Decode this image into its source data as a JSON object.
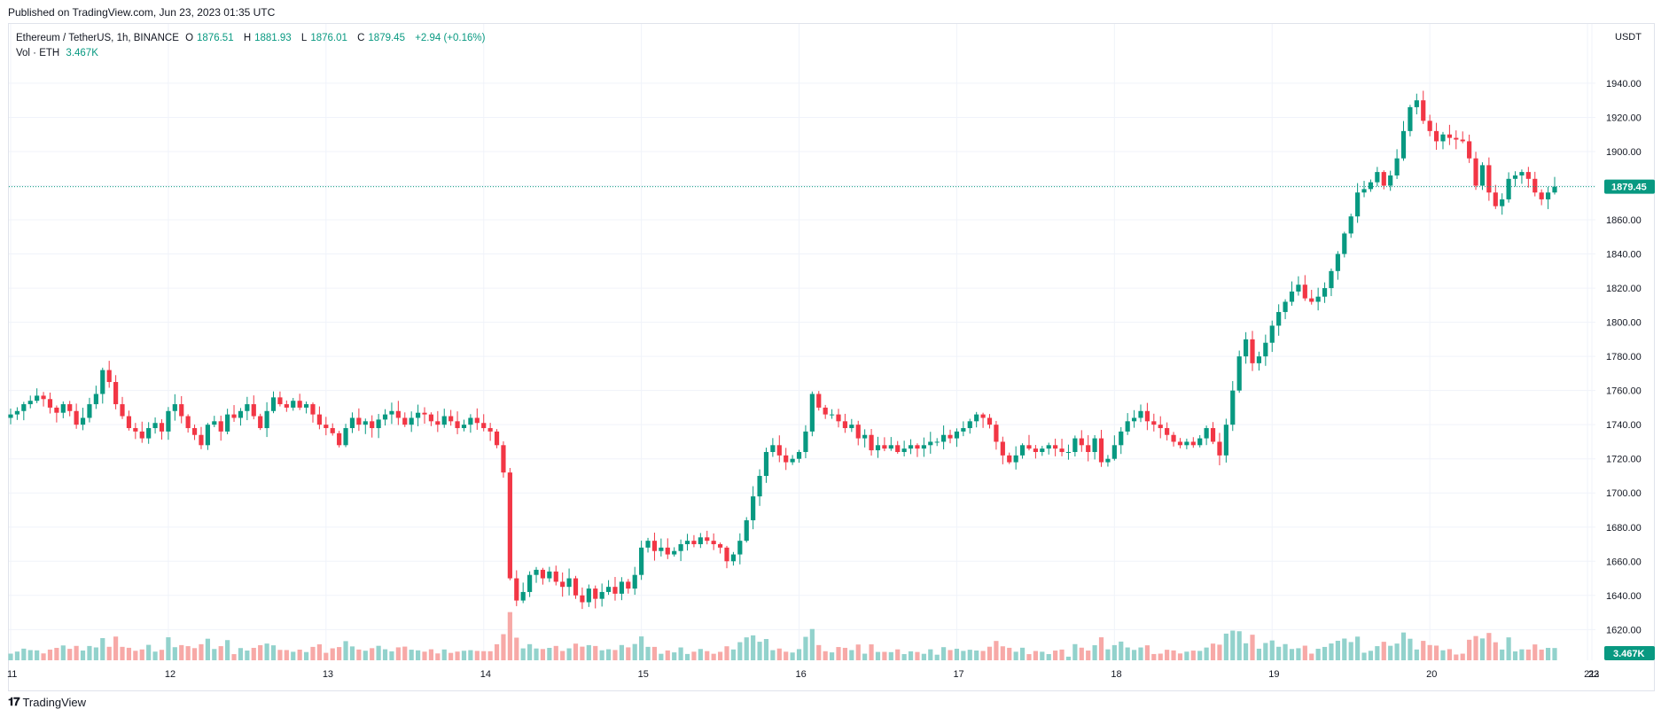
{
  "header": {
    "published": "Published on TradingView.com, Jun 23, 2023 01:35 UTC"
  },
  "legend": {
    "symbol": "Ethereum / TetherUS, 1h, BINANCE",
    "open_label": "O",
    "open": "1876.51",
    "high_label": "H",
    "high": "1881.93",
    "low_label": "L",
    "low": "1876.01",
    "close_label": "C",
    "close": "1879.45",
    "change": "+2.94 (+0.16%)",
    "vol_label": "Vol · ETH",
    "vol_value": "3.467K"
  },
  "footer": {
    "brand": "TradingView",
    "logo_icon": "tradingview-logo-icon"
  },
  "colors": {
    "up": "#089981",
    "down": "#f23645",
    "vol_up": "#92d2cc",
    "vol_down": "#f7a9a7",
    "grid": "#f0f3fa",
    "axis_text": "#131722"
  },
  "chart_data": {
    "type": "candlestick",
    "currency": "USDT",
    "y_ticks": [
      1620,
      1640,
      1660,
      1680,
      1700,
      1720,
      1740,
      1760,
      1780,
      1800,
      1820,
      1840,
      1860,
      1880,
      1900,
      1920,
      1940
    ],
    "y_tick_labels": [
      "1620.00",
      "1640.00",
      "1660.00",
      "1680.00",
      "1700.00",
      "1720.00",
      "1740.00",
      "1760.00",
      "1780.00",
      "1800.00",
      "1820.00",
      "1840.00",
      "1860.00",
      "1880.00",
      "1900.00",
      "1920.00",
      "1940.00"
    ],
    "ylim": [
      1602,
      1968
    ],
    "x_ticks": [
      "11",
      "12",
      "13",
      "14",
      "15",
      "16",
      "17",
      "18",
      "19",
      "20",
      "21",
      "22",
      "23"
    ],
    "last_price_label": "1879.45",
    "last_price": 1879.45,
    "last_volume_label": "3.467K",
    "series_close": [
      1746,
      1748,
      1752,
      1754,
      1757,
      1755,
      1750,
      1747,
      1752,
      1748,
      1740,
      1744,
      1752,
      1758,
      1772,
      1765,
      1752,
      1745,
      1738,
      1736,
      1732,
      1738,
      1741,
      1736,
      1748,
      1752,
      1745,
      1738,
      1734,
      1728,
      1740,
      1742,
      1736,
      1746,
      1744,
      1748,
      1752,
      1745,
      1738,
      1748,
      1756,
      1752,
      1750,
      1754,
      1750,
      1752,
      1746,
      1740,
      1738,
      1735,
      1728,
      1738,
      1744,
      1740,
      1742,
      1738,
      1743,
      1746,
      1748,
      1744,
      1740,
      1744,
      1747,
      1746,
      1742,
      1740,
      1745,
      1742,
      1738,
      1740,
      1744,
      1741,
      1738,
      1736,
      1728,
      1712,
      1650,
      1637,
      1642,
      1652,
      1655,
      1650,
      1654,
      1648,
      1645,
      1650,
      1640,
      1636,
      1644,
      1638,
      1642,
      1645,
      1641,
      1648,
      1644,
      1652,
      1668,
      1672,
      1666,
      1668,
      1664,
      1666,
      1670,
      1672,
      1670,
      1674,
      1672,
      1670,
      1668,
      1660,
      1664,
      1672,
      1684,
      1698,
      1710,
      1724,
      1728,
      1722,
      1718,
      1720,
      1724,
      1736,
      1758,
      1750,
      1746,
      1746,
      1742,
      1738,
      1740,
      1732,
      1734,
      1725,
      1728,
      1726,
      1728,
      1724,
      1726,
      1728,
      1726,
      1728,
      1730,
      1730,
      1734,
      1732,
      1736,
      1738,
      1742,
      1746,
      1744,
      1740,
      1730,
      1722,
      1718,
      1722,
      1728,
      1726,
      1724,
      1726,
      1728,
      1726,
      1724,
      1724,
      1732,
      1728,
      1724,
      1732,
      1718,
      1720,
      1728,
      1736,
      1742,
      1744,
      1748,
      1742,
      1740,
      1738,
      1734,
      1730,
      1728,
      1730,
      1728,
      1732,
      1738,
      1730,
      1722,
      1740,
      1760,
      1780,
      1790,
      1776,
      1780,
      1788,
      1798,
      1806,
      1812,
      1818,
      1822,
      1814,
      1812,
      1815,
      1820,
      1830,
      1840,
      1852,
      1862,
      1876,
      1878,
      1882,
      1888,
      1880,
      1886,
      1896,
      1912,
      1926,
      1930,
      1918,
      1912,
      1906,
      1910,
      1908,
      1907,
      1906,
      1896,
      1880,
      1892,
      1876,
      1868,
      1872,
      1884,
      1886,
      1888,
      1884,
      1876,
      1872,
      1876,
      1879.45
    ]
  }
}
